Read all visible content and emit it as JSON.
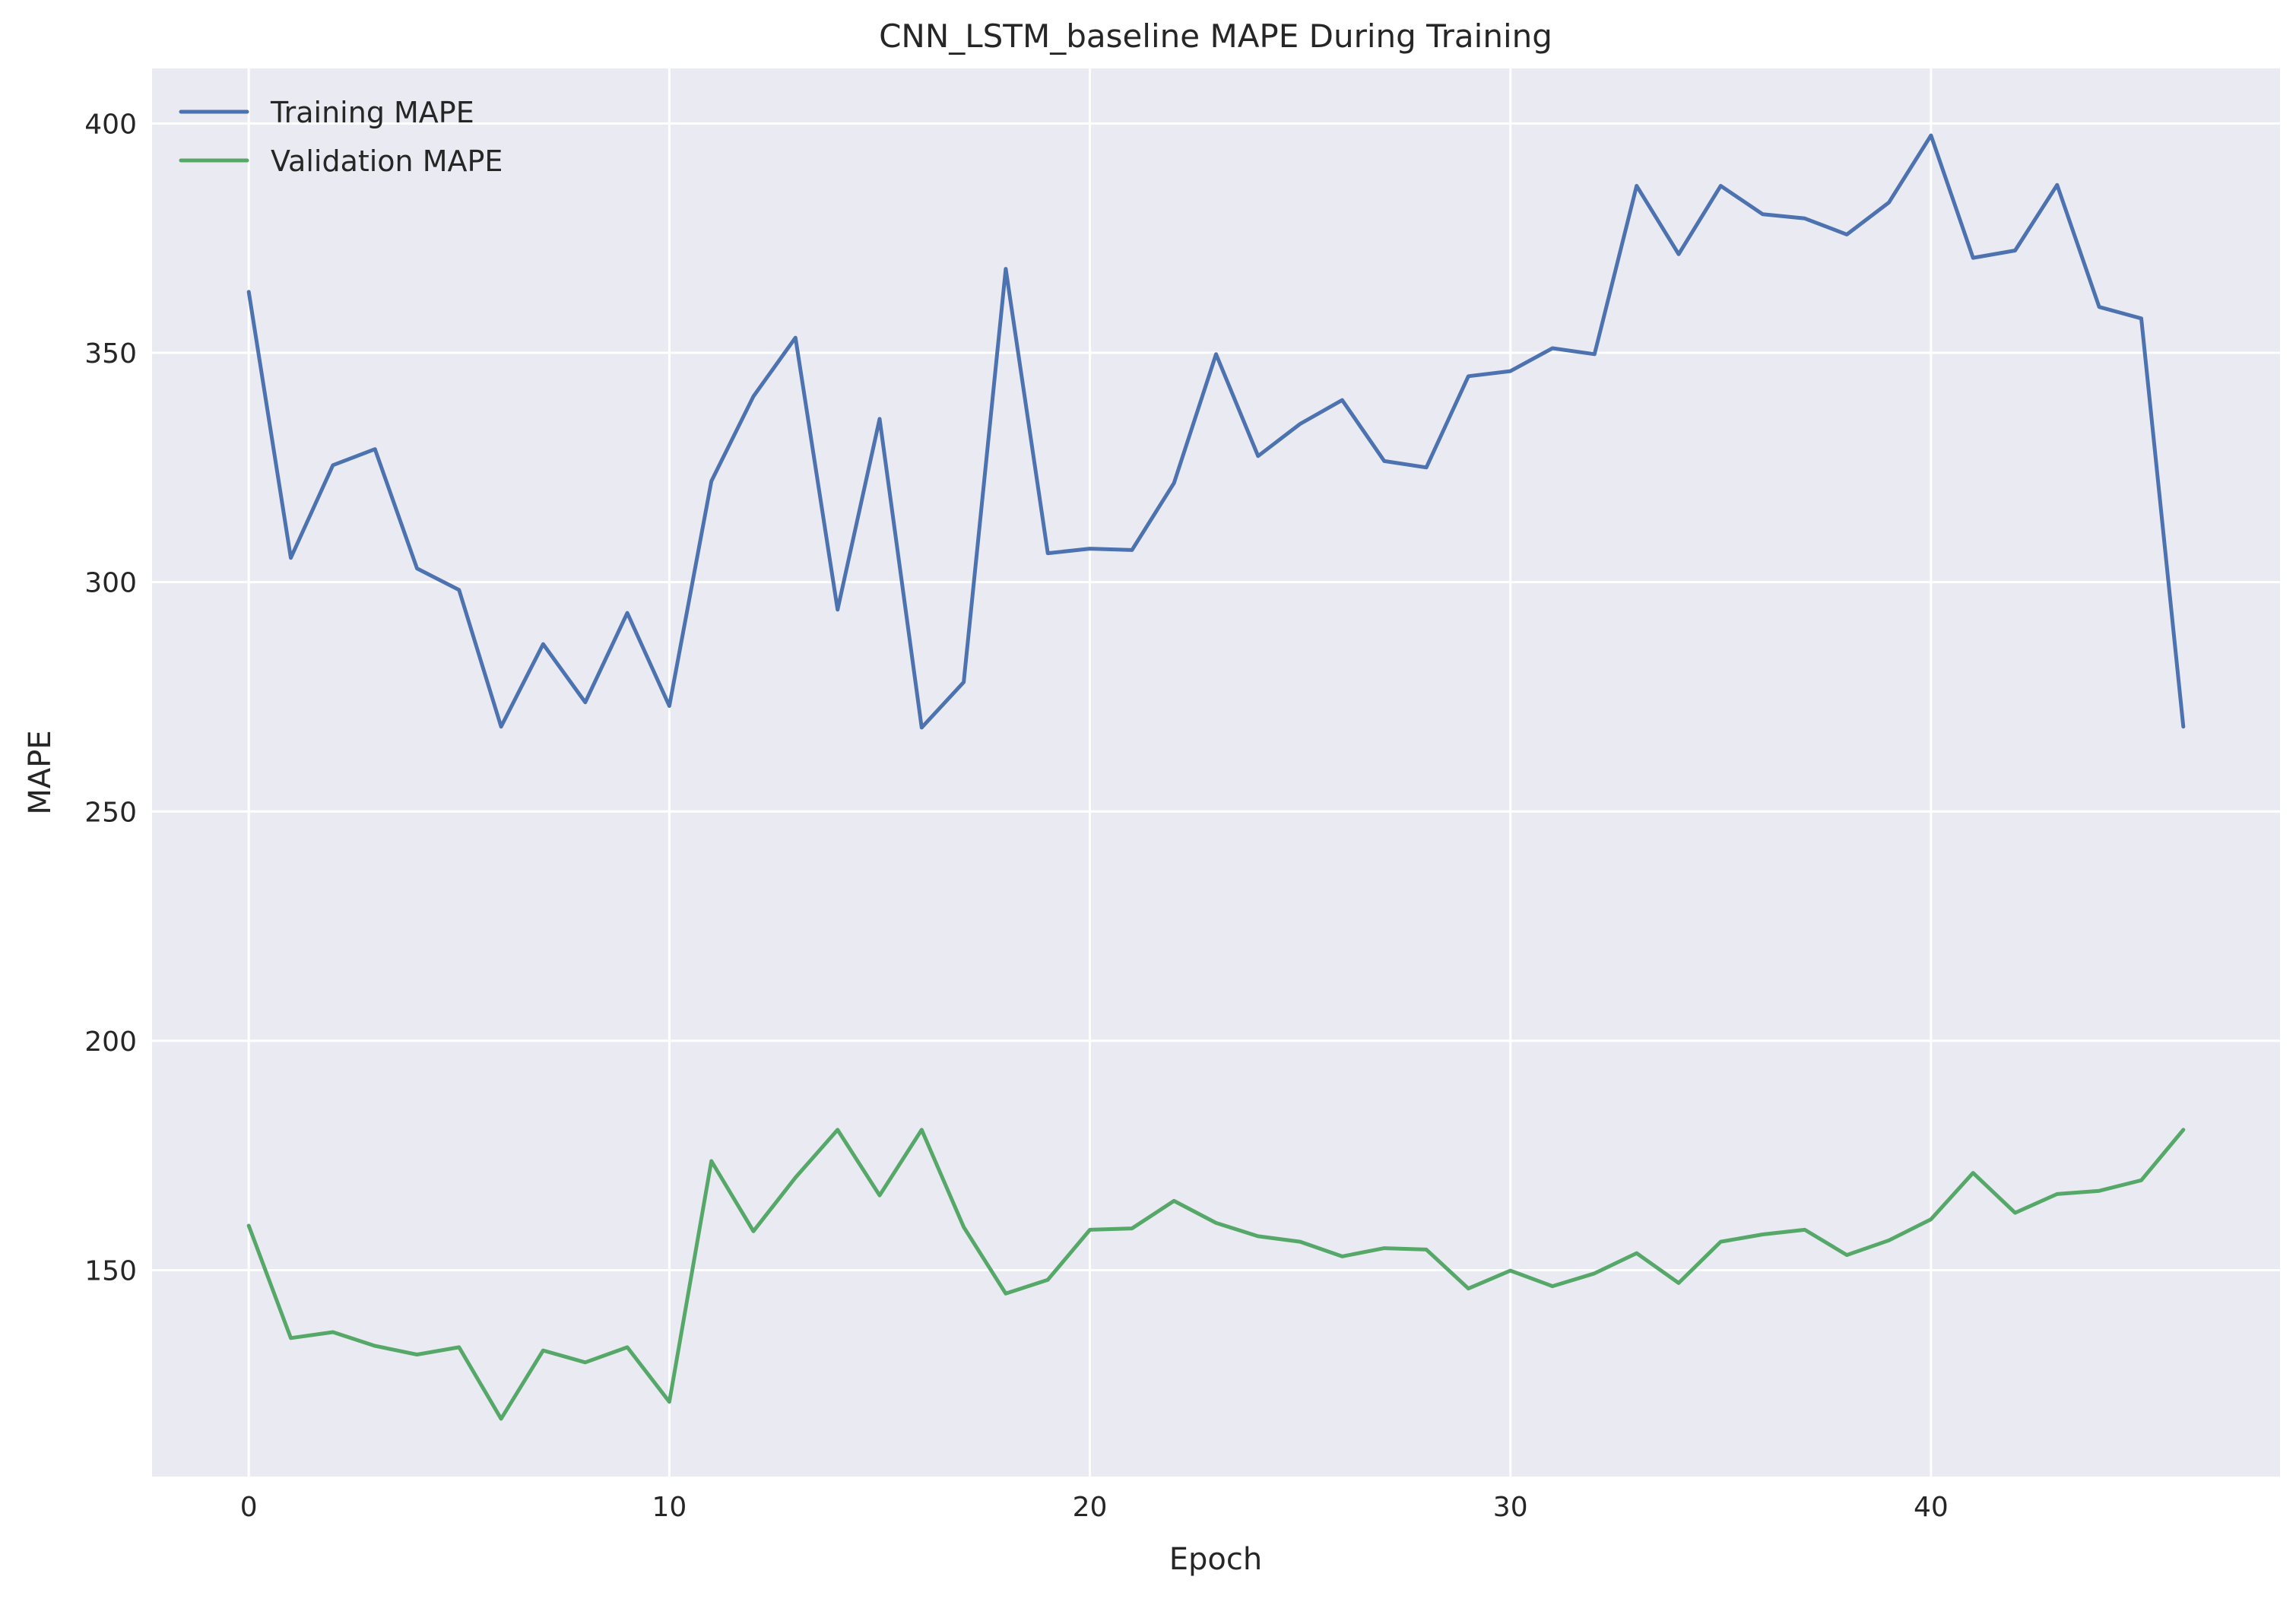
{
  "chart_data": {
    "type": "line",
    "title": "CNN_LSTM_baseline MAPE During Training",
    "xlabel": "Epoch",
    "ylabel": "MAPE",
    "xlim": [
      -2.3,
      48.3
    ],
    "ylim": [
      105,
      412
    ],
    "xticks": [
      0,
      10,
      20,
      30,
      40
    ],
    "yticks": [
      150,
      200,
      250,
      300,
      350,
      400
    ],
    "grid": true,
    "legend_position": "top-left",
    "x": [
      0,
      1,
      2,
      3,
      4,
      5,
      6,
      7,
      8,
      9,
      10,
      11,
      12,
      13,
      14,
      15,
      16,
      17,
      18,
      19,
      20,
      21,
      22,
      23,
      24,
      25,
      26,
      27,
      28,
      29,
      30,
      31,
      32,
      33,
      34,
      35,
      36,
      37,
      38,
      39,
      40,
      41,
      42,
      43,
      44,
      45,
      46
    ],
    "series": [
      {
        "name": "Training MAPE",
        "color": "#4c72b0",
        "values": [
          363.3,
          305.3,
          325.5,
          329.0,
          303.0,
          298.3,
          268.5,
          286.5,
          273.8,
          293.3,
          273.0,
          322.0,
          340.5,
          353.3,
          294.0,
          335.6,
          268.3,
          278.2,
          368.3,
          306.3,
          307.3,
          307.0,
          321.6,
          349.7,
          327.5,
          334.5,
          339.7,
          326.4,
          325.0,
          344.9,
          346.0,
          351.0,
          349.7,
          386.4,
          371.5,
          386.4,
          380.2,
          379.3,
          375.8,
          382.8,
          397.4,
          370.7,
          372.3,
          386.6,
          360.0,
          357.5,
          268.5
        ]
      },
      {
        "name": "Validation MAPE",
        "color": "#55a868",
        "values": [
          159.7,
          135.2,
          136.5,
          133.5,
          131.6,
          133.2,
          117.6,
          132.5,
          129.9,
          133.2,
          121.3,
          173.8,
          158.5,
          170.2,
          180.6,
          166.3,
          180.6,
          159.4,
          144.9,
          147.9,
          158.8,
          159.1,
          165.1,
          160.3,
          157.4,
          156.2,
          153.0,
          154.8,
          154.5,
          146.0,
          149.9,
          146.5,
          149.3,
          153.7,
          147.2,
          156.2,
          157.8,
          158.8,
          153.3,
          156.5,
          161.1,
          171.2,
          162.5,
          166.6,
          167.3,
          169.6,
          180.6
        ]
      }
    ]
  }
}
